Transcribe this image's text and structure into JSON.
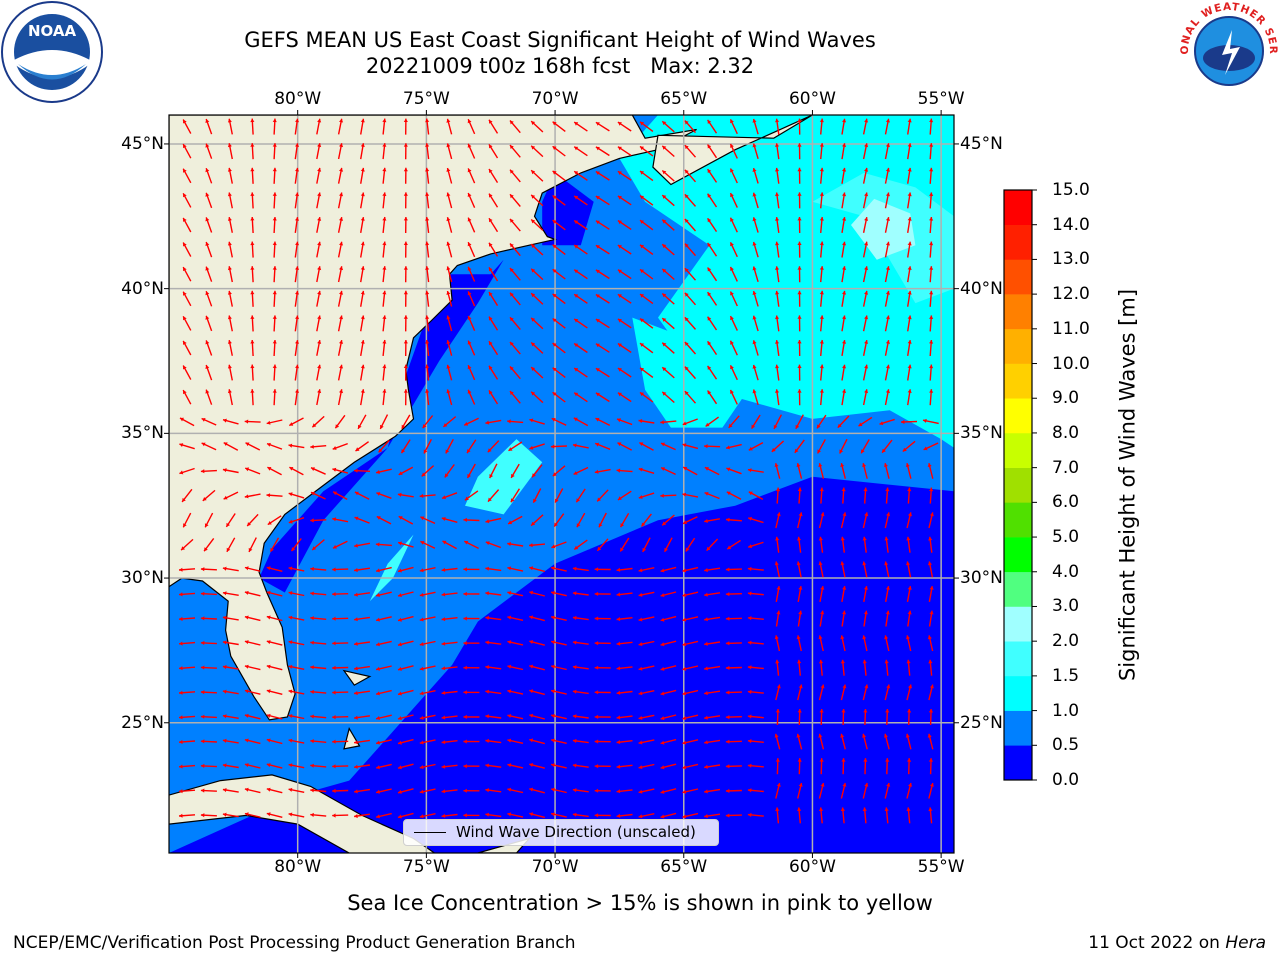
{
  "title": {
    "line1": "GEFS MEAN US East Coast Significant Height of Wind Waves",
    "line2": "20221009 t00z 168h fcst   Max: 2.32"
  },
  "logos": {
    "left_text": "NOAA",
    "right_text": "NATIONAL WEATHER SERVICE"
  },
  "axes": {
    "lon_ticks": [
      "80°W",
      "75°W",
      "70°W",
      "65°W",
      "60°W",
      "55°W"
    ],
    "lat_ticks": [
      "45°N",
      "40°N",
      "35°N",
      "30°N",
      "25°N"
    ],
    "lon_range": [
      -85,
      -54.5
    ],
    "lat_range": [
      20.5,
      46
    ]
  },
  "colorbar": {
    "title": "Significant Height of Wind Waves [m]",
    "ticks": [
      "15.0",
      "14.0",
      "13.0",
      "12.0",
      "11.0",
      "10.0",
      "9.0",
      "8.0",
      "7.0",
      "6.0",
      "5.0",
      "4.0",
      "3.0",
      "2.0",
      "1.5",
      "1.0",
      "0.5",
      "0.0"
    ],
    "colors": [
      "#0000ff",
      "#0080ff",
      "#00ffff",
      "#40ffff",
      "#a0ffff",
      "#50ff80",
      "#00ff00",
      "#50e000",
      "#a0e000",
      "#c8ff00",
      "#ffff00",
      "#ffd000",
      "#ffb000",
      "#ff8000",
      "#ff5000",
      "#ff2000",
      "#ff0000"
    ],
    "land_color": "#efefdc",
    "arrow_color": "#ff0000"
  },
  "legend": {
    "label": "Wind Wave Direction (unscaled)"
  },
  "footer": {
    "sea_ice": "Sea Ice Concentration > 15% is shown in pink to yellow",
    "left": "NCEP/EMC/Verification Post Processing Product Generation Branch",
    "right_date": "11 Oct 2022 on ",
    "right_machine": "Hera"
  }
}
